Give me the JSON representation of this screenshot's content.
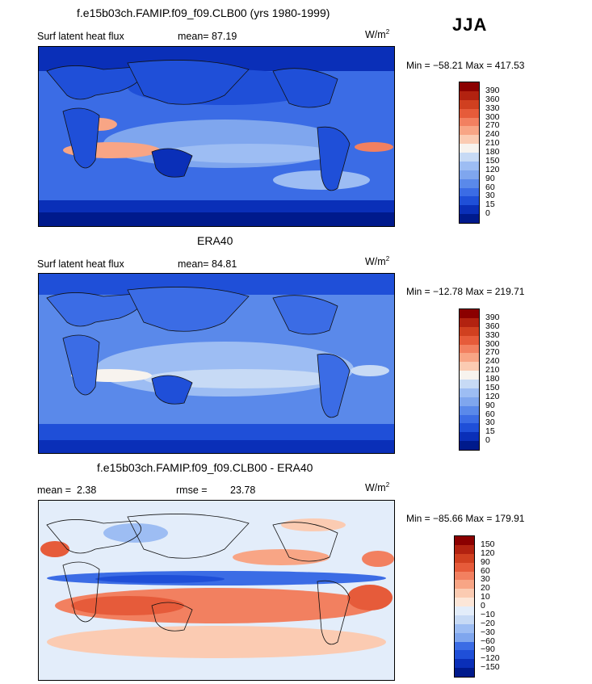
{
  "season": "JJA",
  "panels": [
    {
      "id": "model",
      "title": "f.e15b03ch.FAMIP.f09_f09.CLB00 (yrs 1980-1999)",
      "variable": "Surf latent heat flux",
      "stat1_label": "mean=",
      "stat1_value": "87.19",
      "stat2_label": "",
      "stat2_value": "",
      "units": "W/m",
      "units_exp": "2",
      "minmax": "Min = −58.21 Max = 417.53",
      "colorbar": {
        "levels": [
          "390",
          "360",
          "330",
          "300",
          "270",
          "240",
          "210",
          "180",
          "150",
          "120",
          "90",
          "60",
          "30",
          "15",
          "0"
        ],
        "colors": [
          "#8B0000",
          "#B22210",
          "#D04020",
          "#E65B3A",
          "#F28060",
          "#F8A585",
          "#FBCBB2",
          "#F7F3EE",
          "#C7DAF5",
          "#9DBDF3",
          "#7FA6EE",
          "#5A89EA",
          "#3B6CE5",
          "#1F4FD8",
          "#0A2FB8",
          "#001A8C"
        ]
      }
    },
    {
      "id": "obs",
      "title": "ERA40",
      "variable": "Surf latent heat flux",
      "stat1_label": "mean=",
      "stat1_value": "84.81",
      "stat2_label": "",
      "stat2_value": "",
      "units": "W/m",
      "units_exp": "2",
      "minmax": "Min = −12.78 Max = 219.71",
      "colorbar": {
        "levels": [
          "390",
          "360",
          "330",
          "300",
          "270",
          "240",
          "210",
          "180",
          "150",
          "120",
          "90",
          "60",
          "30",
          "15",
          "0"
        ],
        "colors": [
          "#8B0000",
          "#B22210",
          "#D04020",
          "#E65B3A",
          "#F28060",
          "#F8A585",
          "#FBCBB2",
          "#F7F3EE",
          "#C7DAF5",
          "#9DBDF3",
          "#7FA6EE",
          "#5A89EA",
          "#3B6CE5",
          "#1F4FD8",
          "#0A2FB8",
          "#001A8C"
        ]
      }
    },
    {
      "id": "diff",
      "title": "f.e15b03ch.FAMIP.f09_f09.CLB00 - ERA40",
      "variable": "",
      "stat1_label": "mean =",
      "stat1_value": "2.38",
      "stat2_label": "rmse =",
      "stat2_value": "23.78",
      "units": "W/m",
      "units_exp": "2",
      "minmax": "Min = −85.66 Max = 179.91",
      "colorbar": {
        "levels": [
          "150",
          "120",
          "90",
          "60",
          "30",
          "20",
          "10",
          "0",
          "−10",
          "−20",
          "−30",
          "−60",
          "−90",
          "−120",
          "−150"
        ],
        "colors": [
          "#8B0000",
          "#B22210",
          "#D04020",
          "#E65B3A",
          "#F28060",
          "#F8A585",
          "#FBCBB2",
          "#FCE6D8",
          "#E3EDFA",
          "#C7DAF5",
          "#9DBDF3",
          "#7FA6EE",
          "#3B6CE5",
          "#1F4FD8",
          "#0A2FB8",
          "#001A8C"
        ]
      }
    }
  ]
}
